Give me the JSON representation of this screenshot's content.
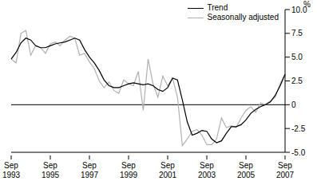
{
  "chart_data": {
    "type": "line",
    "y_label": "%",
    "legend": "top right",
    "reference_y": 0,
    "categories": [
      "Sep 1993",
      null,
      null,
      null,
      null,
      null,
      null,
      null,
      "Sep 1995",
      null,
      null,
      null,
      null,
      null,
      null,
      null,
      "Sep 1997",
      null,
      null,
      null,
      null,
      null,
      null,
      null,
      "Sep 1999",
      null,
      null,
      null,
      null,
      null,
      null,
      null,
      "Sep 2001",
      null,
      null,
      null,
      null,
      null,
      null,
      null,
      "Sep 2003",
      null,
      null,
      null,
      null,
      null,
      null,
      null,
      "Sep 2005",
      null,
      null,
      null,
      null,
      null,
      null,
      null,
      "Sep 2007"
    ],
    "series": [
      {
        "name": "Trend",
        "color": "#000000",
        "values": [
          4.8,
          5.5,
          6.5,
          7.0,
          6.8,
          6.2,
          6.0,
          6.0,
          6.2,
          6.4,
          6.5,
          6.6,
          6.8,
          7.0,
          6.8,
          5.8,
          5.0,
          4.4,
          3.6,
          2.6,
          2.0,
          1.8,
          1.8,
          2.0,
          2.2,
          2.3,
          2.2,
          2.1,
          2.2,
          2.0,
          1.6,
          1.4,
          1.8,
          2.8,
          2.6,
          0.5,
          -1.8,
          -3.2,
          -3.0,
          -2.7,
          -2.8,
          -3.6,
          -4.0,
          -3.8,
          -3.0,
          -2.3,
          -2.3,
          -2.1,
          -1.6,
          -0.9,
          -0.5,
          -0.2,
          0.0,
          0.3,
          1.0,
          2.0,
          3.2
        ]
      },
      {
        "name": "Seasonally adjusted",
        "color": "#b0b0b0",
        "values": [
          4.8,
          4.4,
          7.5,
          7.8,
          5.2,
          6.2,
          6.0,
          5.4,
          6.4,
          6.6,
          6.2,
          6.8,
          7.2,
          7.0,
          5.2,
          5.4,
          4.5,
          3.8,
          2.5,
          1.8,
          2.4,
          1.5,
          1.2,
          2.6,
          2.2,
          2.0,
          3.5,
          -0.6,
          4.8,
          2.2,
          0.8,
          3.0,
          2.0,
          2.8,
          0.8,
          -4.3,
          -3.6,
          -2.8,
          -2.6,
          -3.2,
          -4.2,
          -4.2,
          -3.6,
          -1.4,
          -2.4,
          -2.2,
          -2.4,
          -1.4,
          -0.6,
          -0.2,
          -0.8,
          0.2,
          0.0,
          0.4,
          0.8,
          2.2,
          3.2
        ]
      }
    ],
    "ylim": [
      -5,
      10
    ],
    "yticks": [
      {
        "value": -5,
        "label": "-5.0"
      },
      -2.5,
      0,
      2.5,
      {
        "value": 5,
        "label": "5.0"
      },
      7.5,
      {
        "value": 10,
        "label": "10.0"
      }
    ]
  }
}
